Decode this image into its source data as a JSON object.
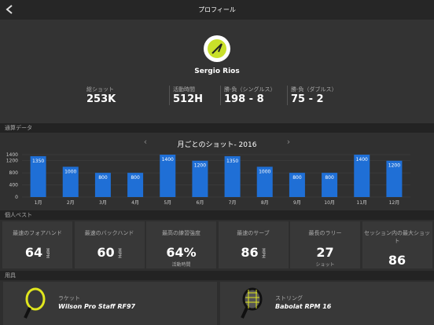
{
  "header": {
    "title": "プロフィール"
  },
  "profile": {
    "name": "Sergio Rios",
    "stats": [
      {
        "label": "総ショット",
        "value": "253K"
      },
      {
        "label": "活動時間",
        "value": "512H"
      },
      {
        "label": "勝-負（シングルス）",
        "value": "198 - 8"
      },
      {
        "label": "勝-負（ダブルス）",
        "value": "75 - 2"
      }
    ]
  },
  "sections": [
    "通算データ",
    "個人ベスト",
    "用具"
  ],
  "chart_data": {
    "type": "bar",
    "title": "月ごとのショット- 2016",
    "categories": [
      "1月",
      "2月",
      "3月",
      "4月",
      "5月",
      "6月",
      "7月",
      "8月",
      "9月",
      "10月",
      "11月",
      "12月"
    ],
    "values": [
      1350,
      1000,
      800,
      800,
      1400,
      1200,
      1350,
      1000,
      800,
      800,
      1400,
      1200
    ],
    "color": "#1f6fd6",
    "ylim": [
      0,
      1400
    ],
    "yticks": [
      0,
      400,
      800,
      1200,
      1400
    ],
    "grid": true
  },
  "bests": [
    {
      "label": "最速のフォアハンド",
      "value": "64",
      "unit": "MPH"
    },
    {
      "label": "最速のバックハンド",
      "value": "60",
      "unit": "MPH"
    },
    {
      "label": "最高の練習強度",
      "value": "64%",
      "note": "活動時間"
    },
    {
      "label": "最速のサーブ",
      "value": "86",
      "unit": "MPH"
    },
    {
      "label": "最長のラリー",
      "value": "27",
      "note": "ショット"
    },
    {
      "label": "セッション内の最大ショット",
      "value": "86"
    }
  ],
  "equipment": [
    {
      "label": "ラケット",
      "name": "Wilson Pro Staff RF97"
    },
    {
      "label": "ストリング",
      "name": "Babolat RPM 16"
    }
  ]
}
